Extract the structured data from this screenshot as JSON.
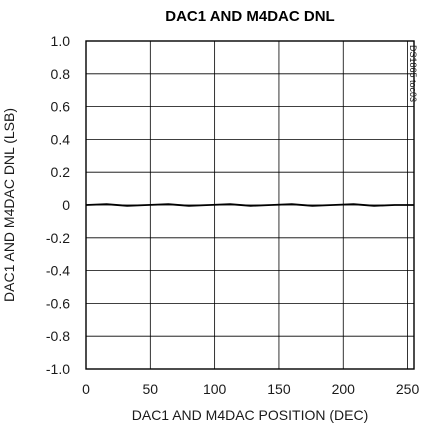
{
  "chart_data": {
    "type": "line",
    "title": "DAC1 AND M4DAC DNL",
    "xlabel": "DAC1 AND M4DAC POSITION (DEC)",
    "ylabel": "DAC1 AND M4DAC DNL (LSB)",
    "figure_code": "DS1865 toc03",
    "xlim": [
      0,
      255
    ],
    "ylim": [
      -1.0,
      1.0
    ],
    "x_ticks": [
      0,
      50,
      100,
      150,
      200,
      250
    ],
    "x_tick_labels": [
      "0",
      "50",
      "100",
      "150",
      "200",
      "250"
    ],
    "y_ticks": [
      1.0,
      0.8,
      0.6,
      0.4,
      0.2,
      0,
      -0.2,
      -0.4,
      -0.6,
      -0.8,
      -1.0
    ],
    "y_tick_labels": [
      "1.0",
      "0.8",
      "0.6",
      "0.4",
      "0.2",
      "0",
      "-0.2",
      "-0.4",
      "-0.6",
      "-0.8",
      "-1.0"
    ],
    "grid": true,
    "series": [
      {
        "color": "#000000",
        "x": [
          0,
          16,
          32,
          48,
          64,
          80,
          96,
          112,
          128,
          144,
          160,
          176,
          192,
          208,
          224,
          240,
          255
        ],
        "y": [
          0,
          0.005,
          -0.005,
          0,
          0.005,
          -0.005,
          0,
          0.005,
          -0.005,
          0,
          0.005,
          -0.005,
          0,
          0.005,
          -0.005,
          0,
          0
        ]
      }
    ]
  }
}
